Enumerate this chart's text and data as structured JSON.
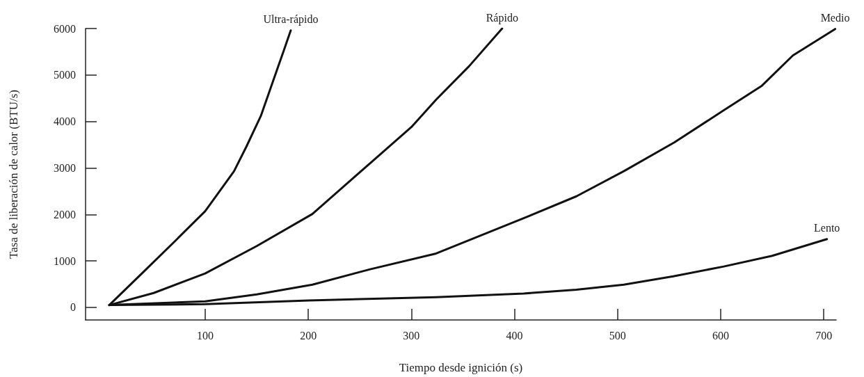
{
  "chart_data": {
    "type": "line",
    "xlabel": "Tiempo desde ignición (s)",
    "ylabel": "Tasa de liberación de calor (BTU/s)",
    "xlim": [
      -16,
      712
    ],
    "xticks": [
      100,
      200,
      300,
      400,
      500,
      600,
      700
    ],
    "ylim": [
      -270,
      6000
    ],
    "yticks": [
      0,
      1000,
      2000,
      3000,
      4000,
      5000,
      6000
    ],
    "grid": false,
    "legend": false,
    "marker": "none",
    "line_style": "solid",
    "series": [
      {
        "name": "Ultra-rápido",
        "color": "#111111",
        "x": [
          7,
          40,
          70,
          100,
          128,
          140,
          154,
          169,
          176,
          183
        ],
        "values": [
          50,
          760,
          1410,
          2070,
          2930,
          3460,
          4120,
          5070,
          5510,
          5960
        ]
      },
      {
        "name": "Rápido",
        "color": "#111111",
        "x": [
          7,
          50,
          100,
          150,
          204,
          266,
          300,
          324,
          356,
          388
        ],
        "values": [
          50,
          310,
          730,
          1320,
          2010,
          3220,
          3880,
          4470,
          5190,
          6000
        ]
      },
      {
        "name": "Medio",
        "color": "#111111",
        "x": [
          7,
          100,
          150,
          204,
          260,
          324,
          409,
          460,
          506,
          555,
          603,
          640,
          670,
          711
        ],
        "values": [
          50,
          130,
          280,
          490,
          820,
          1160,
          1920,
          2390,
          2930,
          3550,
          4240,
          4770,
          5420,
          5990
        ]
      },
      {
        "name": "Lento",
        "color": "#111111",
        "x": [
          7,
          50,
          100,
          200,
          324,
          409,
          460,
          506,
          554,
          603,
          650,
          703
        ],
        "values": [
          50,
          60,
          70,
          150,
          220,
          300,
          380,
          490,
          670,
          880,
          1110,
          1470
        ]
      }
    ]
  }
}
